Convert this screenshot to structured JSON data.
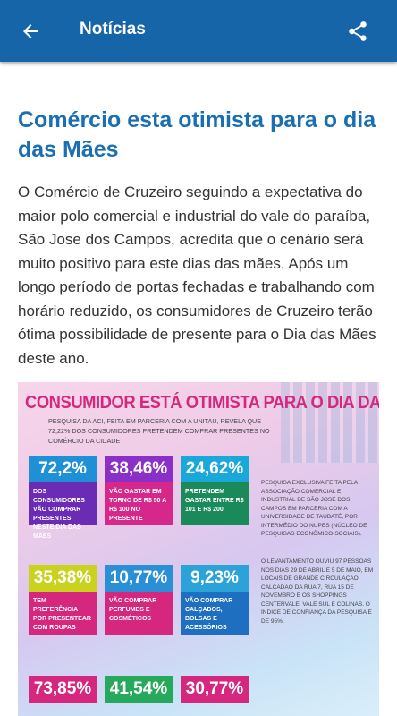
{
  "appbar": {
    "title": "Notícias",
    "back_icon": "arrow-left-icon",
    "share_icon": "share-icon",
    "color": "#1565a8"
  },
  "article": {
    "title": "Comércio esta otimista para o dia das Mães",
    "body": "O Comércio de Cruzeiro seguindo a expectativa do maior polo comercial e industrial do vale do paraíba, São Jose dos Campos, acredita que o cenário será muito positivo para este dias das mães. Após um longo período de portas fechadas e trabalhando com horário reduzido, os consumidores de Cruzeiro terão ótima possibilidade de presente para o Dia das Mães deste ano."
  },
  "infographic": {
    "title": "CONSUMIDOR ESTÁ OTIMISTA PARA O DIA DAS MÃES",
    "subtitle": "PESQUISA DA ACI, FEITA EM PARCERIA COM A UNITAU, REVELA QUE 72,22% DOS CONSUMIDORES PRETENDEM COMPRAR PRESENTES NO COMÉRCIO DA CIDADE",
    "side_text_1": "PESQUISA EXCLUSIVA FEITA PELA ASSOCIAÇÃO COMERCIAL E INDUSTRIAL DE SÃO JOSÉ DOS CAMPOS EM PARCERIA COM A UNIVERSIDADE DE TAUBATÉ, POR INTERMÉDIO DO NUPES (NÚCLEO DE PESQUISAS ECONÔMICO-SOCIAIS).",
    "side_text_2": "O LEVANTAMENTO OUVIU 97 PESSOAS NOS DIAS 29 DE ABRIL E 5 DE MAIO, EM LOCAIS DE GRANDE CIRCULAÇÃO: CALÇADÃO DA RUA 7, RUA 15 DE NOVEMBRO E OS SHOPPINGS CENTERVALE, VALE SUL E COLINAS. O ÍNDICE DE CONFIANÇA DA PESQUISA É DE 95%.",
    "stats": [
      {
        "value": "72,2%",
        "desc": "DOS CONSUMIDORES VÃO COMPRAR PRESENTES NESTE DIA DAS MÃES",
        "top": "#1f8fd6",
        "bottom": "#6a2bb5"
      },
      {
        "value": "38,46%",
        "desc": "VÃO GASTAR EM TORNO DE R$ 50 A R$ 100 NO PRESENTE",
        "top": "#8b2fc9",
        "bottom": "#d6278a"
      },
      {
        "value": "24,62%",
        "desc": "PRETENDEM GASTAR ENTRE R$ 101 E R$ 200",
        "top": "#1aa8d8",
        "bottom": "#1a8a5a"
      },
      {
        "value": "35,38%",
        "desc": "TEM PREFERÊNCIA POR PRESENTEAR COM ROUPAS",
        "top": "#c8d21f",
        "bottom": "#d6277f"
      },
      {
        "value": "10,77%",
        "desc": "VÃO COMPRAR PERFUMES E COSMÉTICOS",
        "top": "#2b8fd6",
        "bottom": "#d6277f"
      },
      {
        "value": "9,23%",
        "desc": "VÃO COMPRAR CALÇADOS, BOLSAS E ACESSÓRIOS",
        "top": "#2ba3d9",
        "bottom": "#1f6fc0"
      },
      {
        "value": "73,85%",
        "desc": "",
        "top": "#d6277f",
        "bottom": "#d6277f"
      },
      {
        "value": "41,54%",
        "desc": "",
        "top": "#26a95a",
        "bottom": "#26a95a"
      },
      {
        "value": "30,77%",
        "desc": "",
        "top": "#d6277f",
        "bottom": "#d6277f"
      }
    ]
  }
}
